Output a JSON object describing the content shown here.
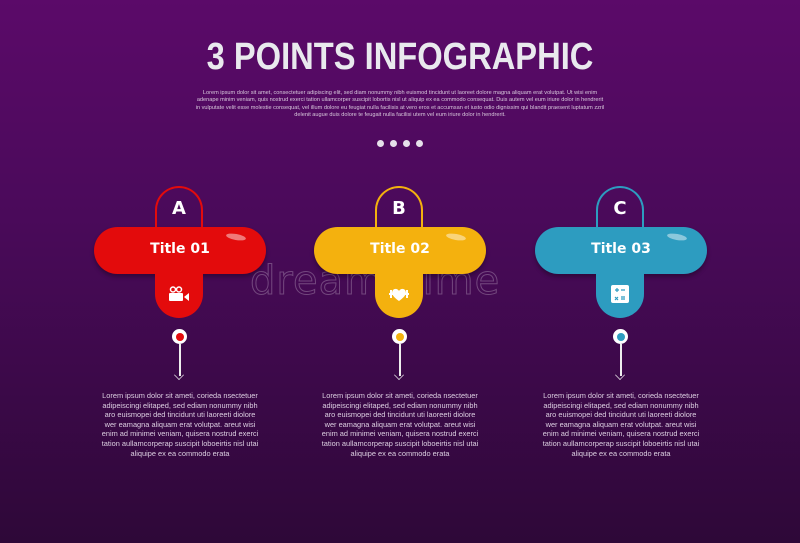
{
  "header": {
    "title": "3 POINTS INFOGRAPHIC",
    "description": "Lorem ipsum dolor sit amet, consectetuer adipiscing elit, sed diam nonummy nibh euismod tincidunt ut laoreet dolore magna aliquam erat volutpat. Ut wisi enim adenape minim veniam, quis nostrud exerci tation ullamcorper suscipit lobortis nisl ut aliquip ex ea commodo consequat. Duis autem vel eum iriure dolor in hendrerit in vulputate velit esse molestie consequat, vel illum dolore eu feugiat nulla facilisis at vero eros et accumsan et iusto odio dignissim qui blandit praesent luptatum zzril delenit augue duis dolore te feugait nulla facilisi utem vel eum iriure dolor in hendrerit."
  },
  "watermark": "dreamstime",
  "items": [
    {
      "letter": "A",
      "title": "Title 01",
      "icon": "video-camera-icon",
      "color": "#e30b0c",
      "body": "Lorem ipsum dolor sit ameti, corieda nsectetuer adipeiscingi elitaped, sed ediam nonummy nibh aro euismopei ded tincidunt uti laoreeti diolore wer eamagna aliquam erat volutpat. areut wisi enim ad minimei veniam, quisera nostrud exerci tation aullamcorperap suscipit loboeirtis nisl utai aliquipe ex ea commodo erata"
    },
    {
      "letter": "B",
      "title": "Title 02",
      "icon": "fitness-heart-icon",
      "color": "#f4b10e",
      "body": "Lorem ipsum dolor sit ameti, corieda nsectetuer adipeiscingi elitaped, sed ediam nonummy nibh aro euismopei ded tincidunt uti laoreeti diolore wer eamagna aliquam erat volutpat. areut wisi enim ad minimei veniam, quisera nostrud exerci tation aullamcorperap suscipit loboeirtis nisl utai aliquipe ex ea commodo erata"
    },
    {
      "letter": "C",
      "title": "Title 03",
      "icon": "calculator-icon",
      "color": "#2d9cc0",
      "body": "Lorem ipsum dolor sit ameti, corieda nsectetuer adipeiscingi elitaped, sed ediam nonummy nibh aro euismopei ded tincidunt uti laoreeti diolore wer eamagna aliquam erat volutpat. areut wisi enim ad minimei veniam, quisera nostrud exerci tation aullamcorperap suscipit loboeirtis nisl utai aliquipe ex ea commodo erata"
    }
  ]
}
